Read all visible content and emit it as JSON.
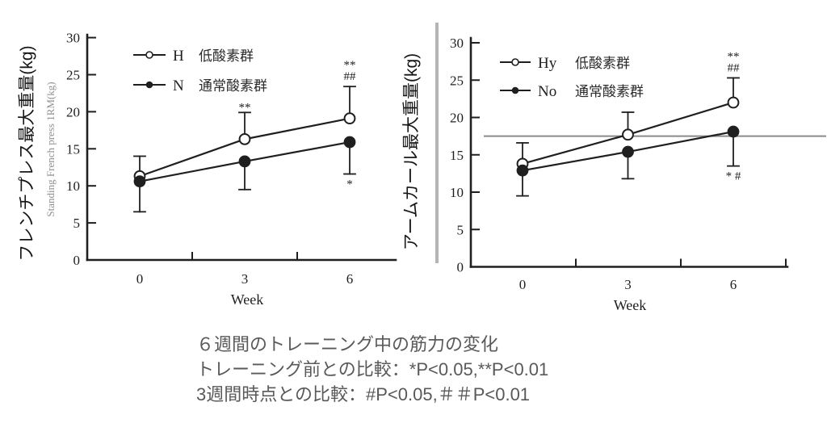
{
  "caption": {
    "lines": [
      "６週間のトレーニング中の筋力の変化",
      "トレーニング前との比較：*P<0.05,**P<0.01",
      "3週間時点との比較：#P<0.05,＃＃P<0.01"
    ]
  },
  "chart_data": [
    {
      "type": "line",
      "id": "french-press",
      "ylabel": "フレンチプレス最大重量(kg)",
      "ghost_ylabel": "Standing French press 1RM(kg)",
      "xlabel": "Week",
      "x_categories": [
        "0",
        "3",
        "6"
      ],
      "x_values_weeks": [
        0,
        3,
        6
      ],
      "y_ticks": [
        0,
        5,
        10,
        15,
        20,
        25,
        30
      ],
      "ylim": [
        0,
        30
      ],
      "grid": false,
      "legend_position": "upper-left-inside",
      "legend": [
        {
          "key": "H",
          "label": "低酸素群",
          "marker": "open"
        },
        {
          "key": "N",
          "label": "通常酸素群",
          "marker": "filled"
        }
      ],
      "series": [
        {
          "name": "H",
          "marker": "open",
          "values": [
            11.3,
            16.3,
            19.1
          ],
          "err_top": [
            14.0,
            19.9,
            23.4
          ]
        },
        {
          "name": "N",
          "marker": "filled",
          "values": [
            10.6,
            13.3,
            15.9
          ],
          "err_bot": [
            6.5,
            9.5,
            11.6
          ]
        }
      ],
      "annotations": [
        {
          "series": "H",
          "week_index": 1,
          "side": "above",
          "lines": [
            "**"
          ],
          "note": "partially hidden behind legend"
        },
        {
          "series": "H",
          "week_index": 2,
          "side": "above",
          "lines": [
            "**",
            "##"
          ]
        },
        {
          "series": "N",
          "week_index": 2,
          "side": "below",
          "lines": [
            "*"
          ]
        }
      ]
    },
    {
      "type": "line",
      "id": "arm-curl",
      "ylabel": "アームカール最大重量(kg)",
      "xlabel": "Week",
      "x_categories": [
        "0",
        "3",
        "6"
      ],
      "x_values_weeks": [
        0,
        3,
        6
      ],
      "y_ticks": [
        0,
        5,
        10,
        15,
        20,
        25,
        30
      ],
      "ylim": [
        0,
        30
      ],
      "grid": false,
      "refline_y": 17.5,
      "legend_position": "upper-left-inside",
      "legend": [
        {
          "key": "Hy",
          "label": "低酸素群",
          "marker": "open"
        },
        {
          "key": "No",
          "label": "通常酸素群",
          "marker": "filled"
        }
      ],
      "series": [
        {
          "name": "Hy",
          "marker": "open",
          "values": [
            13.8,
            17.7,
            22.0
          ],
          "err_top": [
            16.6,
            20.7,
            25.3
          ]
        },
        {
          "name": "No",
          "marker": "filled",
          "values": [
            12.9,
            15.4,
            18.1
          ],
          "err_bot": [
            9.5,
            11.8,
            13.5
          ]
        }
      ],
      "annotations": [
        {
          "series": "Hy",
          "week_index": 2,
          "side": "above",
          "lines": [
            "**",
            "##"
          ]
        },
        {
          "series": "No",
          "week_index": 2,
          "side": "below",
          "lines": [
            "* #"
          ]
        }
      ]
    }
  ],
  "colors": {
    "ink": "#1f1f1f",
    "caption_text": "#595959",
    "refline": "#8a8a8a",
    "stripe_artifact": "#b5b5b5",
    "ghost_text": "#909090",
    "background": "#ffffff"
  }
}
